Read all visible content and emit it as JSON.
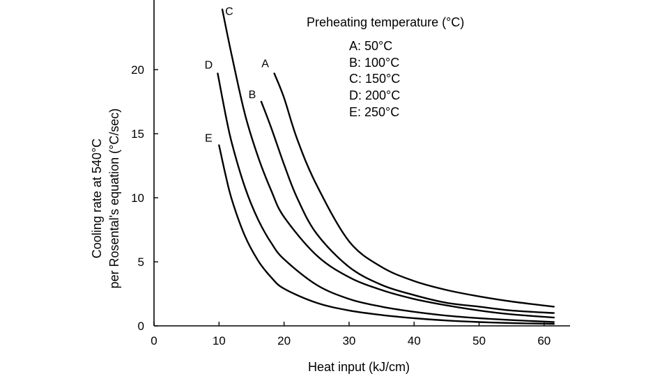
{
  "chart_data": {
    "type": "line",
    "title": "",
    "xlabel": "Heat input (kJ/cm)",
    "ylabel_lines": [
      "Cooling rate at 540°C",
      "per Rosental's equation (°C/sec)"
    ],
    "xlim": [
      0,
      64
    ],
    "ylim": [
      0,
      25
    ],
    "x_ticks": [
      0,
      10,
      20,
      30,
      40,
      50,
      60
    ],
    "y_ticks": [
      0,
      5,
      10,
      15,
      20
    ],
    "grid": false,
    "legend": {
      "placement": "top-right",
      "title": "Preheating temperature (°C)",
      "entries": [
        "A:  50°C",
        "B: 100°C",
        "C: 150°C",
        "D: 200°C",
        "E: 250°C"
      ]
    },
    "series": [
      {
        "label": "A",
        "x": [
          18.5,
          20,
          22,
          25,
          30,
          35,
          40,
          45,
          50,
          55,
          61.5
        ],
        "y": [
          19.7,
          17.8,
          14.6,
          11.0,
          6.6,
          4.6,
          3.5,
          2.8,
          2.3,
          1.9,
          1.5
        ]
      },
      {
        "label": "B",
        "x": [
          16.5,
          18,
          20,
          22,
          25,
          30,
          35,
          40,
          45,
          50,
          55,
          61.5
        ],
        "y": [
          17.5,
          15.5,
          12.6,
          10.0,
          7.2,
          4.6,
          3.2,
          2.4,
          1.8,
          1.5,
          1.2,
          1.0
        ]
      },
      {
        "label": "C",
        "x": [
          10.5,
          12,
          14,
          16,
          18,
          20,
          25,
          30,
          35,
          40,
          45,
          50,
          55,
          61.5
        ],
        "y": [
          24.7,
          21.0,
          16.5,
          13.2,
          10.6,
          8.5,
          5.5,
          3.8,
          2.8,
          2.1,
          1.6,
          1.2,
          0.9,
          0.65
        ]
      },
      {
        "label": "D",
        "x": [
          9.8,
          11,
          12,
          14,
          16,
          18,
          20,
          25,
          30,
          35,
          40,
          45,
          50,
          55,
          61.5
        ],
        "y": [
          19.7,
          16.5,
          14.2,
          10.8,
          8.3,
          6.5,
          5.2,
          3.2,
          2.1,
          1.5,
          1.1,
          0.8,
          0.6,
          0.45,
          0.3
        ]
      },
      {
        "label": "E",
        "x": [
          10.0,
          11,
          12,
          14,
          16,
          18,
          20,
          25,
          30,
          35,
          40,
          45,
          50,
          55,
          61.5
        ],
        "y": [
          14.1,
          11.8,
          9.8,
          7.0,
          5.1,
          3.8,
          2.9,
          1.8,
          1.2,
          0.85,
          0.6,
          0.42,
          0.3,
          0.22,
          0.15
        ]
      }
    ]
  }
}
